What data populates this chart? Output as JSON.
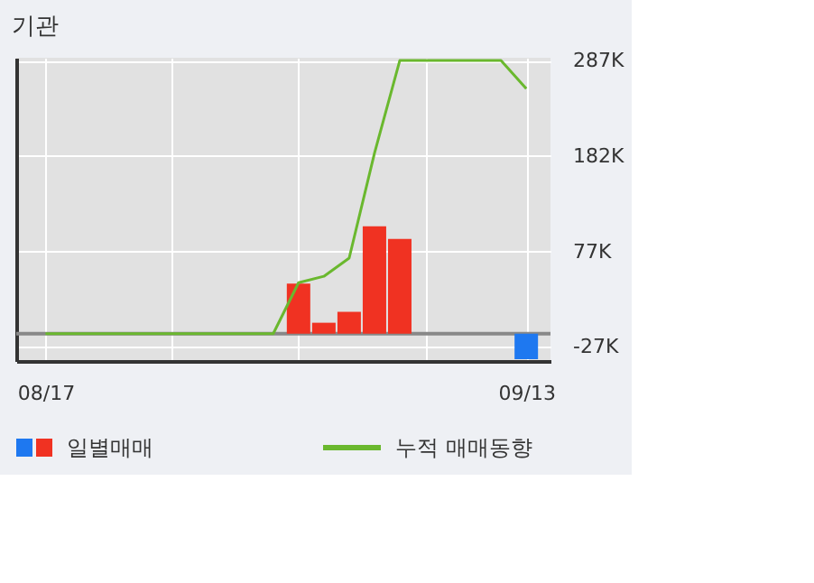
{
  "chart_data": {
    "type": "bar",
    "title": "기관",
    "categories": [
      "08/17",
      null,
      null,
      null,
      null,
      null,
      null,
      null,
      null,
      null,
      null,
      null,
      null,
      null,
      null,
      null,
      null,
      null,
      null,
      "09/13"
    ],
    "series": [
      {
        "name": "일별매매",
        "values": [
          null,
          null,
          null,
          null,
          null,
          null,
          null,
          null,
          null,
          null,
          55,
          12,
          24,
          118,
          104,
          null,
          null,
          null,
          null,
          -28
        ],
        "base": [
          null,
          null,
          null,
          null,
          null,
          null,
          null,
          null,
          null,
          null,
          -13,
          -13,
          -13,
          -13,
          -13,
          null,
          null,
          null,
          null,
          -13
        ],
        "colors": [
          null,
          null,
          null,
          null,
          null,
          null,
          null,
          null,
          null,
          null,
          "#f03222",
          "#f03222",
          "#f03222",
          "#f03222",
          "#f03222",
          null,
          null,
          null,
          null,
          "#1e78f0"
        ]
      },
      {
        "name": "누적 매매동향",
        "type": "line",
        "color": "#6ab82e",
        "values": [
          -13,
          -13,
          -13,
          -13,
          -13,
          -13,
          -13,
          -13,
          -13,
          -13,
          43,
          50,
          70,
          185,
          287,
          287,
          287,
          287,
          287,
          256
        ]
      }
    ],
    "ylim": [
      -43,
      290
    ],
    "yticks": [
      {
        "value": -27,
        "label": "-27K"
      },
      {
        "value": 77,
        "label": "77K"
      },
      {
        "value": 182,
        "label": "182K"
      },
      {
        "value": 287,
        "label": "287K"
      }
    ],
    "ref_lines": [
      {
        "axis": "y",
        "value": -13,
        "label": null,
        "color": "#888888"
      }
    ],
    "grid": true,
    "legend": "bottom"
  }
}
